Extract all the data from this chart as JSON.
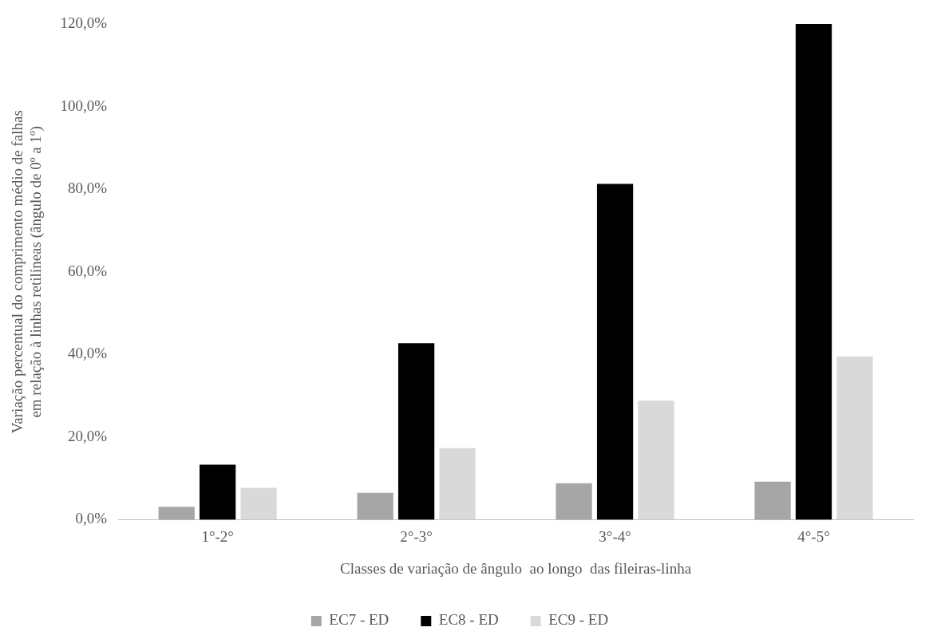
{
  "chart_data": {
    "type": "bar",
    "xlabel": "Classes de variação de ângulo  ao longo  das fileiras-linha",
    "ylabel": "Variação percentual do comprimento médio de falhas em relação à linhas retilíneas (ângulo de 0º a 1º)",
    "categories": [
      "1°-2°",
      "2°-3°",
      "3°-4°",
      "4°-5°"
    ],
    "series": [
      {
        "name": "EC7 - ED",
        "color": "#a6a6a6",
        "values": [
          3.1,
          6.5,
          8.8,
          9.2
        ]
      },
      {
        "name": "EC8 - ED",
        "color": "#000000",
        "values": [
          13.3,
          42.7,
          81.3,
          120
        ]
      },
      {
        "name": "EC9 - ED",
        "color": "#d9d9d9",
        "values": [
          7.7,
          17.3,
          28.8,
          39.5
        ]
      }
    ],
    "ylim": [
      0,
      120
    ],
    "yticks": [
      {
        "value": 0,
        "label": "0,0%"
      },
      {
        "value": 20,
        "label": "20,0%"
      },
      {
        "value": 40,
        "label": "40,0%"
      },
      {
        "value": 60,
        "label": "60,0%"
      },
      {
        "value": 80,
        "label": "80,0%"
      },
      {
        "value": 100,
        "label": "100,0%"
      },
      {
        "value": 120,
        "label": "120,0%"
      }
    ],
    "grid": false,
    "legend": "bottom"
  }
}
